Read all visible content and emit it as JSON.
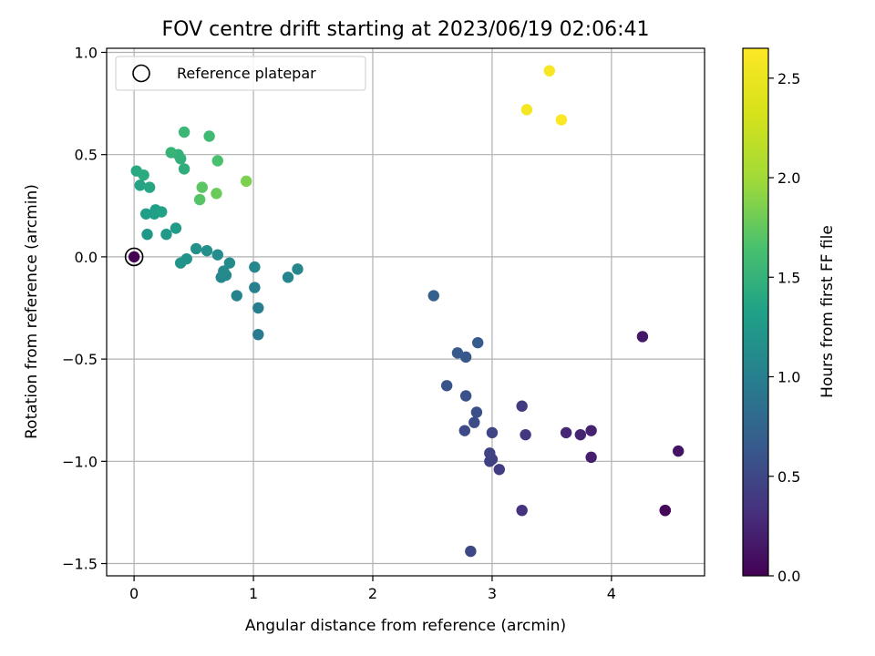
{
  "chart_data": {
    "type": "scatter",
    "title": "FOV centre drift starting at 2023/06/19 02:06:41",
    "xlabel": "Angular distance from reference (arcmin)",
    "ylabel": "Rotation from reference (arcmin)",
    "xlim": [
      -0.23,
      4.78
    ],
    "ylim": [
      -1.56,
      1.02
    ],
    "xticks": [
      0,
      1,
      2,
      3,
      4
    ],
    "xtick_labels": [
      "0",
      "1",
      "2",
      "3",
      "4"
    ],
    "yticks": [
      -1.5,
      -1.0,
      -0.5,
      0.0,
      0.5,
      1.0
    ],
    "ytick_labels": [
      "−1.5",
      "−1.0",
      "−0.5",
      "0.0",
      "0.5",
      "1.0"
    ],
    "grid": true,
    "legend": {
      "position": "top-left",
      "entries": [
        "Reference platepar"
      ]
    },
    "reference_point": {
      "x": 0,
      "y": 0
    },
    "colorbar": {
      "label": "Hours from first FF file",
      "colormap": "viridis",
      "range": [
        0.0,
        2.65
      ],
      "ticks": [
        0.0,
        0.5,
        1.0,
        1.5,
        2.0,
        2.5
      ],
      "tick_labels": [
        "0.0",
        "0.5",
        "1.0",
        "1.5",
        "2.0",
        "2.5"
      ]
    },
    "points": [
      {
        "x": 0.0,
        "y": 0.0,
        "h": 0.0
      },
      {
        "x": 4.45,
        "y": -1.24,
        "h": 0.02
      },
      {
        "x": 4.45,
        "y": -1.24,
        "h": 0.04
      },
      {
        "x": 4.56,
        "y": -0.95,
        "h": 0.12
      },
      {
        "x": 4.26,
        "y": -0.39,
        "h": 0.15
      },
      {
        "x": 3.83,
        "y": -0.98,
        "h": 0.2
      },
      {
        "x": 3.83,
        "y": -0.85,
        "h": 0.22
      },
      {
        "x": 3.74,
        "y": -0.87,
        "h": 0.24
      },
      {
        "x": 3.62,
        "y": -0.86,
        "h": 0.26
      },
      {
        "x": 3.25,
        "y": -1.24,
        "h": 0.33
      },
      {
        "x": 3.28,
        "y": -0.87,
        "h": 0.37
      },
      {
        "x": 3.25,
        "y": -0.73,
        "h": 0.4
      },
      {
        "x": 3.06,
        "y": -1.04,
        "h": 0.42
      },
      {
        "x": 3.0,
        "y": -0.99,
        "h": 0.44
      },
      {
        "x": 2.98,
        "y": -1.0,
        "h": 0.45
      },
      {
        "x": 2.98,
        "y": -0.96,
        "h": 0.46
      },
      {
        "x": 3.0,
        "y": -0.86,
        "h": 0.48
      },
      {
        "x": 2.82,
        "y": -1.44,
        "h": 0.5
      },
      {
        "x": 2.77,
        "y": -0.85,
        "h": 0.52
      },
      {
        "x": 2.85,
        "y": -0.81,
        "h": 0.54
      },
      {
        "x": 2.87,
        "y": -0.76,
        "h": 0.56
      },
      {
        "x": 2.78,
        "y": -0.68,
        "h": 0.58
      },
      {
        "x": 2.62,
        "y": -0.63,
        "h": 0.6
      },
      {
        "x": 2.78,
        "y": -0.49,
        "h": 0.62
      },
      {
        "x": 2.71,
        "y": -0.47,
        "h": 0.64
      },
      {
        "x": 2.88,
        "y": -0.42,
        "h": 0.66
      },
      {
        "x": 2.51,
        "y": -0.19,
        "h": 0.7
      },
      {
        "x": 1.04,
        "y": -0.38,
        "h": 0.95
      },
      {
        "x": 1.04,
        "y": -0.25,
        "h": 0.98
      },
      {
        "x": 1.01,
        "y": -0.15,
        "h": 1.0
      },
      {
        "x": 0.86,
        "y": -0.19,
        "h": 1.02
      },
      {
        "x": 1.29,
        "y": -0.1,
        "h": 1.04
      },
      {
        "x": 1.37,
        "y": -0.06,
        "h": 1.05
      },
      {
        "x": 1.01,
        "y": -0.05,
        "h": 1.06
      },
      {
        "x": 0.73,
        "y": -0.1,
        "h": 1.07
      },
      {
        "x": 0.77,
        "y": -0.09,
        "h": 1.08
      },
      {
        "x": 0.75,
        "y": -0.07,
        "h": 1.1
      },
      {
        "x": 0.8,
        "y": -0.03,
        "h": 1.11
      },
      {
        "x": 0.7,
        "y": 0.01,
        "h": 1.13
      },
      {
        "x": 0.61,
        "y": 0.03,
        "h": 1.15
      },
      {
        "x": 0.52,
        "y": 0.04,
        "h": 1.17
      },
      {
        "x": 0.44,
        "y": -0.01,
        "h": 1.19
      },
      {
        "x": 0.39,
        "y": -0.03,
        "h": 1.2
      },
      {
        "x": 0.11,
        "y": 0.11,
        "h": 1.23
      },
      {
        "x": 0.27,
        "y": 0.11,
        "h": 1.25
      },
      {
        "x": 0.35,
        "y": 0.14,
        "h": 1.27
      },
      {
        "x": 0.1,
        "y": 0.21,
        "h": 1.3
      },
      {
        "x": 0.17,
        "y": 0.21,
        "h": 1.31
      },
      {
        "x": 0.18,
        "y": 0.23,
        "h": 1.33
      },
      {
        "x": 0.23,
        "y": 0.22,
        "h": 1.34
      },
      {
        "x": 0.05,
        "y": 0.35,
        "h": 1.36
      },
      {
        "x": 0.13,
        "y": 0.34,
        "h": 1.38
      },
      {
        "x": 0.02,
        "y": 0.42,
        "h": 1.4
      },
      {
        "x": 0.08,
        "y": 0.4,
        "h": 1.42
      },
      {
        "x": 0.42,
        "y": 0.43,
        "h": 1.45
      },
      {
        "x": 0.39,
        "y": 0.48,
        "h": 1.47
      },
      {
        "x": 0.37,
        "y": 0.5,
        "h": 1.49
      },
      {
        "x": 0.31,
        "y": 0.51,
        "h": 1.51
      },
      {
        "x": 0.42,
        "y": 0.61,
        "h": 1.55
      },
      {
        "x": 0.63,
        "y": 0.59,
        "h": 1.58
      },
      {
        "x": 0.7,
        "y": 0.47,
        "h": 1.65
      },
      {
        "x": 0.55,
        "y": 0.28,
        "h": 1.7
      },
      {
        "x": 0.57,
        "y": 0.34,
        "h": 1.72
      },
      {
        "x": 0.69,
        "y": 0.31,
        "h": 1.78
      },
      {
        "x": 0.94,
        "y": 0.37,
        "h": 1.85
      },
      {
        "x": 3.29,
        "y": 0.72,
        "h": 2.58
      },
      {
        "x": 3.48,
        "y": 0.91,
        "h": 2.6
      },
      {
        "x": 3.58,
        "y": 0.67,
        "h": 2.64
      }
    ]
  }
}
